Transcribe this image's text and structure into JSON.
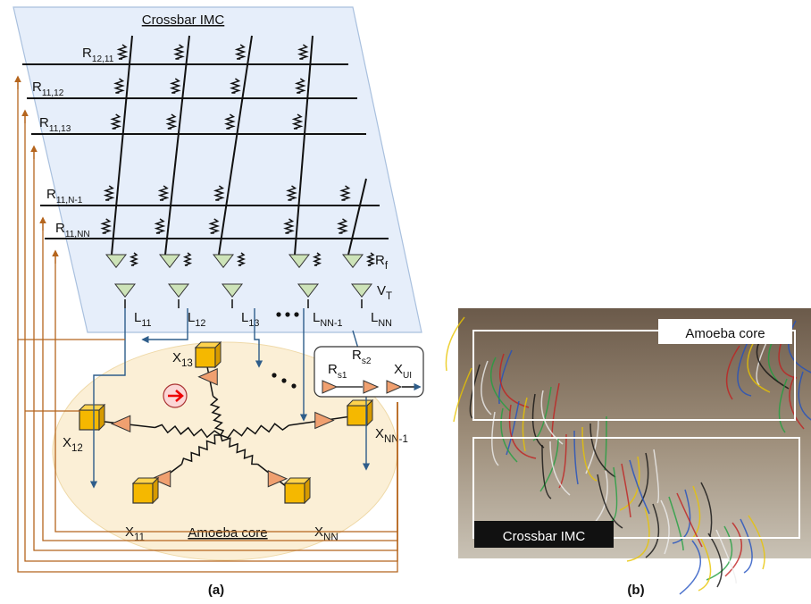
{
  "panel_a": {
    "crossbar_title": "Crossbar IMC",
    "row_resistors": [
      {
        "base": "R",
        "sub": "12,11"
      },
      {
        "base": "R",
        "sub": "11,12"
      },
      {
        "base": "R",
        "sub": "11,13"
      },
      {
        "base": "R",
        "sub": "11,N-1"
      },
      {
        "base": "R",
        "sub": "11,NN"
      }
    ],
    "feedback_resistor": {
      "base": "R",
      "sub": "f"
    },
    "threshold": {
      "base": "V",
      "sub": "T"
    },
    "outputs": [
      {
        "base": "L",
        "sub": "11"
      },
      {
        "base": "L",
        "sub": "12"
      },
      {
        "base": "L",
        "sub": "13"
      },
      {
        "base": "L",
        "sub": "NN-1"
      },
      {
        "base": "L",
        "sub": "NN"
      }
    ],
    "nodes": [
      {
        "base": "X",
        "sub": "13"
      },
      {
        "base": "X",
        "sub": "12"
      },
      {
        "base": "X",
        "sub": "11"
      },
      {
        "base": "X",
        "sub": "NN"
      },
      {
        "base": "X",
        "sub": "NN-1"
      }
    ],
    "inset": {
      "rs1": {
        "base": "R",
        "sub": "s1"
      },
      "rs2": {
        "base": "R",
        "sub": "s2"
      },
      "xui": {
        "base": "X",
        "sub": "UI"
      }
    },
    "core_label": "Amoeba core",
    "caption": "(a)"
  },
  "panel_b": {
    "labels": [
      "Amoeba core",
      "Crossbar IMC"
    ],
    "caption": "(b)"
  }
}
